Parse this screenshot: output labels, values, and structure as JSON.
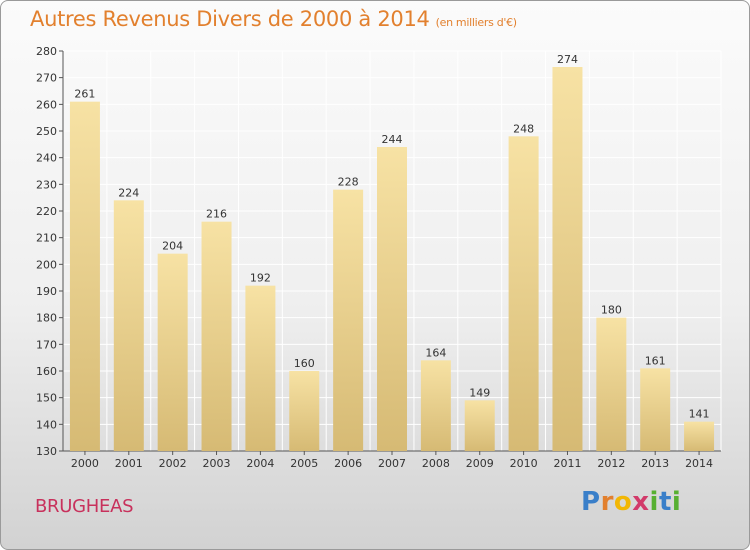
{
  "title": "Autres Revenus Divers de 2000 à 2014",
  "title_unit": "(en milliers d'€)",
  "place": "BRUGHEAS",
  "logo": {
    "letters": [
      "P",
      "r",
      "o",
      "x",
      "i",
      "t",
      "i"
    ],
    "colors": [
      "#3a7fc9",
      "#e2802e",
      "#f2b705",
      "#d23a6a",
      "#58b032",
      "#3a7fc9",
      "#58b032"
    ]
  },
  "colors": {
    "title": "#e2802e",
    "place": "#c8315c",
    "bar_light": "#f7e2a4",
    "bar_dark": "#d6ba74"
  },
  "chart_data": {
    "type": "bar",
    "title": "Autres Revenus Divers de 2000 à 2014",
    "categories": [
      "2000",
      "2001",
      "2002",
      "2003",
      "2004",
      "2005",
      "2006",
      "2007",
      "2008",
      "2009",
      "2010",
      "2011",
      "2012",
      "2013",
      "2014"
    ],
    "values": [
      261,
      224,
      204,
      216,
      192,
      160,
      228,
      244,
      164,
      149,
      248,
      274,
      180,
      161,
      141
    ],
    "ylim": [
      130,
      280
    ],
    "yticks": [
      130,
      140,
      150,
      160,
      170,
      180,
      190,
      200,
      210,
      220,
      230,
      240,
      250,
      260,
      270,
      280
    ],
    "grid": true,
    "data_labels": true
  }
}
